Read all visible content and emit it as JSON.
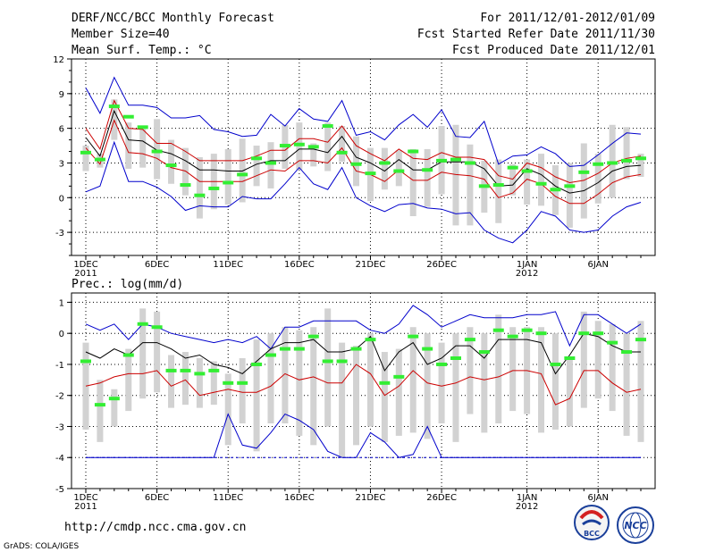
{
  "header": {
    "title": "DERF/NCC/BCC Monthly Forecast",
    "member_size": "Member Size=40",
    "variable": "Mean Surf. Temp.: °C",
    "period": "For 2011/12/01-2012/01/09",
    "start_date": "Fcst Started Refer Date 2011/11/30",
    "produced_date": "Fcst Produced Date 2011/12/01"
  },
  "precip_label": "Prec.: log(mm/d)",
  "footer": {
    "url": "http://cmdp.ncc.cma.gov.cn",
    "grads": "GrADS: COLA/IGES",
    "logo_bcc": "BCC",
    "logo_ncc": "NCC"
  },
  "colors": {
    "max": "#0000cc",
    "min": "#0000cc",
    "mean": "#000000",
    "spread": "#cc0000",
    "obs": "#33ee33",
    "box": "#d2d2d2"
  },
  "chart_data": [
    {
      "type": "line",
      "title": "Mean Surf. Temp.: °C",
      "x": [
        1,
        2,
        3,
        4,
        5,
        6,
        7,
        8,
        9,
        10,
        11,
        12,
        13,
        14,
        15,
        16,
        17,
        18,
        19,
        20,
        21,
        22,
        23,
        24,
        25,
        26,
        27,
        28,
        29,
        30,
        31,
        32,
        33,
        34,
        35,
        36,
        37,
        38,
        39,
        40
      ],
      "ylim": [
        -5,
        12
      ],
      "yticks": [
        -3,
        0,
        3,
        6,
        9,
        12
      ],
      "xticks": [
        {
          "day": 1,
          "label": "1DEC",
          "sub": "2011"
        },
        {
          "day": 6,
          "label": "6DEC"
        },
        {
          "day": 11,
          "label": "11DEC"
        },
        {
          "day": 16,
          "label": "16DEC"
        },
        {
          "day": 21,
          "label": "21DEC"
        },
        {
          "day": 26,
          "label": "26DEC"
        },
        {
          "day": 32,
          "label": "1JAN",
          "sub": "2012"
        },
        {
          "day": 37,
          "label": "6JAN"
        }
      ],
      "series": [
        {
          "name": "max",
          "values": [
            9.5,
            7.3,
            10.4,
            8.0,
            8.0,
            7.8,
            6.9,
            6.9,
            7.1,
            5.9,
            5.7,
            5.3,
            5.4,
            7.2,
            6.2,
            7.7,
            6.8,
            6.6,
            8.4,
            5.4,
            5.7,
            5.0,
            6.3,
            7.2,
            6.1,
            7.6,
            5.3,
            5.2,
            6.6,
            2.9,
            3.6,
            3.7,
            4.4,
            3.8,
            2.7,
            2.8,
            3.7,
            4.7,
            5.6,
            5.5
          ]
        },
        {
          "name": "spread_upper",
          "values": [
            6.0,
            4.2,
            8.4,
            6.0,
            5.9,
            4.7,
            4.7,
            4.0,
            3.2,
            3.2,
            3.2,
            3.2,
            3.6,
            4.1,
            4.1,
            5.1,
            5.1,
            4.8,
            6.2,
            4.5,
            3.8,
            3.2,
            4.2,
            3.4,
            3.3,
            3.9,
            3.5,
            3.5,
            3.3,
            1.9,
            1.6,
            3.0,
            2.6,
            1.8,
            1.3,
            1.5,
            2.1,
            3.0,
            3.4,
            3.6
          ]
        },
        {
          "name": "mean",
          "values": [
            5.2,
            3.6,
            7.5,
            5.0,
            4.9,
            4.1,
            3.8,
            3.2,
            2.4,
            2.4,
            2.3,
            2.3,
            2.9,
            3.2,
            3.2,
            4.2,
            4.2,
            3.9,
            5.3,
            3.5,
            3.0,
            2.3,
            3.3,
            2.4,
            2.4,
            3.1,
            3.1,
            3.1,
            2.5,
            1.0,
            1.1,
            2.5,
            2.0,
            1.0,
            0.4,
            0.6,
            1.3,
            2.3,
            2.7,
            2.8
          ]
        },
        {
          "name": "spread_lower",
          "values": [
            4.3,
            2.9,
            6.7,
            3.9,
            3.8,
            3.4,
            2.6,
            2.3,
            1.4,
            1.4,
            1.4,
            1.4,
            1.9,
            2.4,
            2.3,
            3.2,
            3.2,
            3.0,
            4.3,
            2.3,
            2.0,
            1.4,
            2.4,
            1.5,
            1.5,
            2.2,
            2.0,
            1.9,
            1.6,
            0.0,
            0.4,
            1.6,
            1.2,
            0.1,
            -0.5,
            -0.5,
            0.3,
            1.3,
            1.8,
            2.0
          ]
        },
        {
          "name": "min",
          "values": [
            0.5,
            1.0,
            4.8,
            1.4,
            1.4,
            0.9,
            0.1,
            -1.1,
            -0.7,
            -0.8,
            -0.8,
            0.1,
            -0.1,
            -0.1,
            1.2,
            2.6,
            1.2,
            0.7,
            2.6,
            0.0,
            -0.7,
            -1.2,
            -0.6,
            -0.5,
            -0.9,
            -1.0,
            -1.4,
            -1.3,
            -2.8,
            -3.5,
            -3.9,
            -2.8,
            -1.2,
            -1.6,
            -2.8,
            -3.0,
            -2.8,
            -1.6,
            -0.8,
            -0.4
          ]
        },
        {
          "name": "observed",
          "values": [
            3.9,
            3.3,
            7.9,
            7.0,
            6.1,
            4.0,
            2.8,
            1.1,
            0.2,
            0.8,
            1.3,
            2.0,
            3.4,
            3.0,
            4.5,
            4.6,
            4.4,
            6.2,
            3.9,
            2.9,
            2.1,
            3.0,
            2.3,
            4.0,
            2.4,
            3.2,
            3.3,
            3.0,
            1.0,
            1.1,
            2.6,
            2.3,
            1.2,
            0.7,
            1.0,
            2.2,
            2.9,
            3.0,
            3.2,
            3.4
          ]
        },
        {
          "name": "box_top",
          "values": [
            4.5,
            3.8,
            8.5,
            6.5,
            6.2,
            6.8,
            5.0,
            4.3,
            3.5,
            3.8,
            4.2,
            5.1,
            4.5,
            4.8,
            6.3,
            6.5,
            4.7,
            6.5,
            6.2,
            5.3,
            4.3,
            4.3,
            4.1,
            4.2,
            4.2,
            6.2,
            6.3,
            4.6,
            3.2,
            3.3,
            2.9,
            3.3,
            3.8,
            2.8,
            3.0,
            4.7,
            3.8,
            6.3,
            6.1,
            3.8
          ]
        },
        {
          "name": "box_bottom",
          "values": [
            2.3,
            2.6,
            5.0,
            2.5,
            2.6,
            1.6,
            1.2,
            0.2,
            -1.8,
            -1.0,
            -0.6,
            -0.4,
            1.0,
            0.8,
            2.5,
            2.4,
            2.7,
            2.3,
            3.1,
            1.0,
            -0.3,
            0.7,
            1.0,
            -1.6,
            -0.8,
            0.3,
            -2.4,
            -2.4,
            -1.3,
            -2.2,
            0.2,
            -0.6,
            -0.7,
            -1.5,
            -2.6,
            -1.8,
            -0.5,
            0.0,
            1.6,
            1.8
          ]
        }
      ]
    },
    {
      "type": "line",
      "title": "Prec.: log(mm/d)",
      "x": [
        1,
        2,
        3,
        4,
        5,
        6,
        7,
        8,
        9,
        10,
        11,
        12,
        13,
        14,
        15,
        16,
        17,
        18,
        19,
        20,
        21,
        22,
        23,
        24,
        25,
        26,
        27,
        28,
        29,
        30,
        31,
        32,
        33,
        34,
        35,
        36,
        37,
        38,
        39,
        40
      ],
      "ylim": [
        -5,
        1.3
      ],
      "yticks": [
        -5,
        -4,
        -3,
        -2,
        -1,
        0,
        1
      ],
      "xticks": [
        {
          "day": 1,
          "label": "1DEC",
          "sub": "2011"
        },
        {
          "day": 6,
          "label": "6DEC"
        },
        {
          "day": 11,
          "label": "11DEC"
        },
        {
          "day": 16,
          "label": "16DEC"
        },
        {
          "day": 21,
          "label": "21DEC"
        },
        {
          "day": 26,
          "label": "26DEC"
        },
        {
          "day": 32,
          "label": "1JAN",
          "sub": "2012"
        },
        {
          "day": 37,
          "label": "6JAN"
        }
      ],
      "series": [
        {
          "name": "max",
          "values": [
            0.3,
            0.1,
            0.3,
            -0.2,
            0.3,
            0.2,
            0.0,
            -0.1,
            -0.2,
            -0.3,
            -0.2,
            -0.3,
            -0.1,
            -0.5,
            0.2,
            0.2,
            0.4,
            0.4,
            0.4,
            0.4,
            0.1,
            0.0,
            0.3,
            0.9,
            0.6,
            0.2,
            0.4,
            0.6,
            0.5,
            0.5,
            0.5,
            0.6,
            0.6,
            0.7,
            -0.4,
            0.6,
            0.6,
            0.3,
            0.0,
            0.3
          ]
        },
        {
          "name": "mean",
          "values": [
            -0.6,
            -0.8,
            -0.5,
            -0.7,
            -0.3,
            -0.3,
            -0.5,
            -0.8,
            -0.7,
            -1.0,
            -1.1,
            -1.3,
            -0.9,
            -0.5,
            -0.3,
            -0.3,
            -0.2,
            -0.6,
            -0.6,
            -0.5,
            -0.1,
            -1.2,
            -0.6,
            -0.3,
            -1.0,
            -0.8,
            -0.4,
            -0.4,
            -0.8,
            -0.2,
            -0.2,
            -0.2,
            -0.3,
            -1.3,
            -0.7,
            0.0,
            -0.1,
            -0.4,
            -0.6,
            -0.6
          ]
        },
        {
          "name": "spread_lower",
          "values": [
            -1.7,
            -1.6,
            -1.4,
            -1.3,
            -1.3,
            -1.2,
            -1.7,
            -1.5,
            -2.0,
            -1.9,
            -1.8,
            -1.9,
            -1.9,
            -1.7,
            -1.3,
            -1.5,
            -1.4,
            -1.6,
            -1.6,
            -1.0,
            -1.3,
            -2.0,
            -1.7,
            -1.2,
            -1.6,
            -1.7,
            -1.6,
            -1.4,
            -1.5,
            -1.4,
            -1.2,
            -1.2,
            -1.3,
            -2.3,
            -2.1,
            -1.2,
            -1.2,
            -1.6,
            -1.9,
            -1.8
          ]
        },
        {
          "name": "min",
          "values": [
            -4.0,
            -4.0,
            -4.0,
            -4.0,
            -4.0,
            -4.0,
            -4.0,
            -4.0,
            -4.0,
            -4.0,
            -2.6,
            -3.6,
            -3.7,
            -3.2,
            -2.6,
            -2.8,
            -3.1,
            -3.8,
            -4.0,
            -4.0,
            -3.2,
            -3.5,
            -4.0,
            -3.9,
            -3.0,
            -4.0,
            -4.0,
            -4.0,
            -4.0,
            -4.0,
            -4.0,
            -4.0,
            -4.0,
            -4.0,
            -4.0,
            -4.0,
            -4.0,
            -4.0,
            -4.0,
            -4.0
          ]
        },
        {
          "name": "observed",
          "values": [
            -0.9,
            -2.3,
            -2.1,
            -0.7,
            0.3,
            0.2,
            -1.2,
            -1.2,
            -1.3,
            -1.2,
            -1.6,
            -1.6,
            -1.0,
            -0.7,
            -0.5,
            -0.5,
            -0.1,
            -0.9,
            -0.9,
            -0.5,
            -0.2,
            -1.6,
            -1.4,
            -0.1,
            -0.5,
            -1.0,
            -0.8,
            -0.2,
            -0.6,
            0.1,
            -0.1,
            0.1,
            0.0,
            -1.0,
            -0.8,
            0.0,
            0.0,
            -0.3,
            -0.6,
            -0.2
          ]
        },
        {
          "name": "box_top",
          "values": [
            -0.3,
            -1.5,
            -1.8,
            -0.5,
            0.8,
            0.7,
            -0.7,
            -0.6,
            -0.8,
            -0.9,
            -1.3,
            -0.8,
            -0.2,
            0.0,
            0.2,
            0.1,
            0.2,
            0.8,
            -0.3,
            -0.4,
            0.0,
            -0.6,
            -0.5,
            0.2,
            0.0,
            -0.3,
            0.0,
            0.2,
            0.0,
            0.6,
            0.2,
            0.2,
            0.2,
            0.0,
            -0.8,
            0.7,
            0.4,
            0.3,
            0.0,
            0.4
          ]
        },
        {
          "name": "box_bottom",
          "values": [
            -3.1,
            -3.5,
            -3.0,
            -2.5,
            -2.1,
            -1.9,
            -2.4,
            -2.3,
            -2.4,
            -2.3,
            -3.6,
            -2.9,
            -3.8,
            -2.9,
            -2.9,
            -3.3,
            -3.6,
            -3.0,
            -4.0,
            -3.6,
            -3.0,
            -3.5,
            -3.3,
            -3.2,
            -3.4,
            -2.9,
            -3.5,
            -2.6,
            -3.2,
            -2.9,
            -2.5,
            -2.6,
            -3.2,
            -3.1,
            -3.0,
            -2.4,
            -2.1,
            -2.5,
            -3.3,
            -3.5
          ]
        }
      ]
    }
  ]
}
